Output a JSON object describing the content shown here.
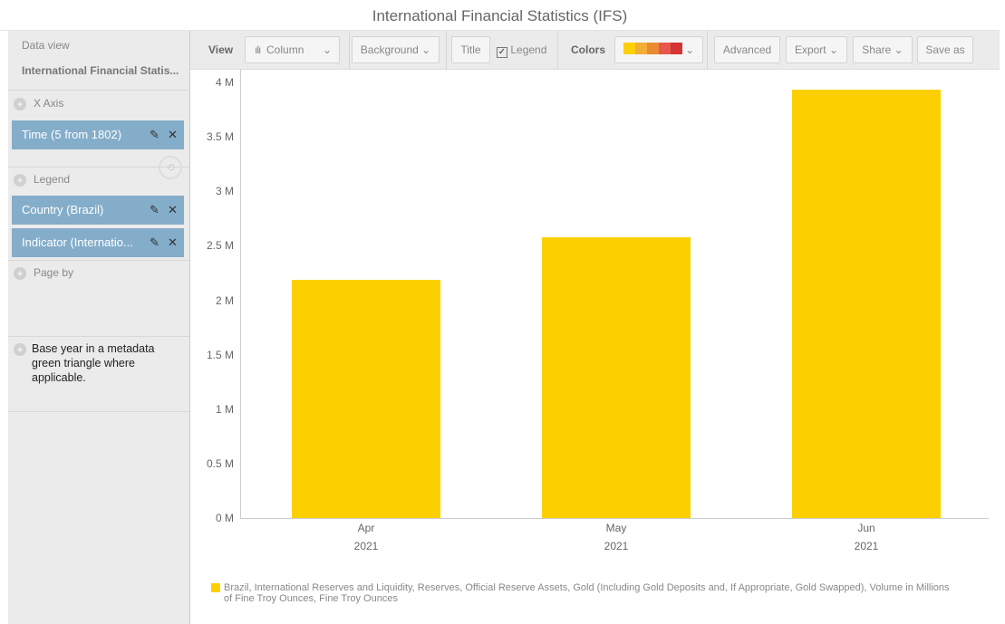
{
  "title": "International Financial Statistics (IFS)",
  "sidebar": {
    "data_view_label": "Data view",
    "data_view_value": "International Financial Statis...",
    "x_axis_label": "X Axis",
    "x_axis_items": [
      {
        "label": "Time (5 from 1802)"
      }
    ],
    "legend_label": "Legend",
    "legend_items": [
      {
        "label": "Country (Brazil)"
      },
      {
        "label": "Indicator (Internatio..."
      }
    ],
    "page_by_label": "Page by",
    "note": "Base year in a metadata green triangle where applicable."
  },
  "toolbar": {
    "view_label": "View",
    "view_value": "Column",
    "background": "Background",
    "title": "Title",
    "legend": "Legend",
    "legend_checked": true,
    "colors_label": "Colors",
    "palette": [
      "#fcd000",
      "#f2ae36",
      "#ea8a33",
      "#e8574e",
      "#d13535"
    ],
    "advanced": "Advanced",
    "export": "Export",
    "share": "Share",
    "save_as": "Save as"
  },
  "chart_data": {
    "type": "bar",
    "categories": [
      "Apr",
      "May",
      "Jun"
    ],
    "category_years": [
      "2021",
      "2021",
      "2021"
    ],
    "series": [
      {
        "name": "Brazil, International Reserves and Liquidity, Reserves, Official Reserve Assets, Gold (Including Gold Deposits and, If Appropriate, Gold Swapped), Volume in Millions of Fine Troy Ounces, Fine Troy Ounces",
        "values": [
          2190000,
          2580000,
          3930000
        ],
        "color": "#fcd000"
      }
    ],
    "yticks": [
      "0 M",
      "0.5 M",
      "1 M",
      "1.5 M",
      "2 M",
      "2.5 M",
      "3 M",
      "3.5 M",
      "4 M"
    ],
    "ylim": [
      0,
      4000000
    ],
    "legend_position": "bottom-left",
    "grid": false
  }
}
